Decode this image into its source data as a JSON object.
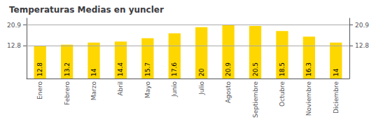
{
  "chart_data": {
    "type": "bar",
    "title": "Temperaturas Medias en yuncler",
    "categories": [
      "Enero",
      "Febrero",
      "Marzo",
      "Abril",
      "Mayo",
      "Junio",
      "Julio",
      "Agosto",
      "Septiembre",
      "Octubre",
      "Noviembre",
      "Diciembre"
    ],
    "values": [
      12.8,
      13.2,
      14.0,
      14.4,
      15.7,
      17.6,
      20.0,
      20.9,
      20.5,
      18.5,
      16.3,
      14.0
    ],
    "color": "#FFD700",
    "ylim": [
      0,
      23.5
    ],
    "yticks": [
      12.8,
      20.9
    ],
    "y2lim": [
      0,
      23.5
    ],
    "y2ticks": [
      12.8,
      20.9
    ],
    "grid": true,
    "data_labels": true
  }
}
